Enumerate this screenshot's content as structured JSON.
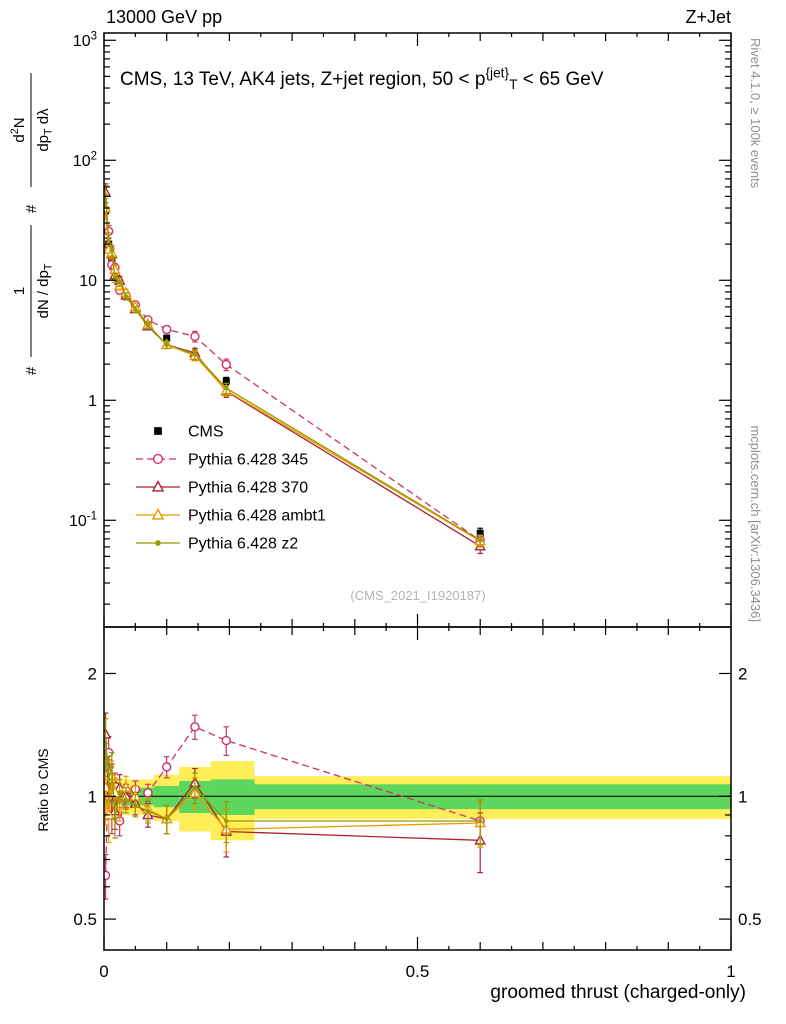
{
  "header": {
    "left": "13000 GeV pp",
    "right": "Z+Jet"
  },
  "title_parts": [
    {
      "t": "CMS, 13 TeV, AK4 jets, Z+jet region, 50 < p"
    },
    {
      "t": "{jet}",
      "style": "sup"
    },
    {
      "t": "T",
      "style": "sub"
    },
    {
      "t": " < 65 GeV"
    }
  ],
  "main_panel": {
    "watermark": "(CMS_2021_I1920187)"
  },
  "ylabel_main": {
    "hash_low": "#",
    "frac1": {
      "num_parts": [
        {
          "t": "1"
        }
      ],
      "den_parts": [
        {
          "t": "dN / dp"
        },
        {
          "t": "T",
          "style": "sub"
        }
      ]
    },
    "hash_high": "#",
    "frac2": {
      "num_parts": [
        {
          "t": "d"
        },
        {
          "t": "2",
          "style": "sup"
        },
        {
          "t": "N"
        }
      ],
      "den_parts": [
        {
          "t": "dp"
        },
        {
          "t": "T",
          "style": "sub"
        },
        {
          "t": " dλ"
        }
      ]
    }
  },
  "ratio_panel": {
    "ylabel": "Ratio to CMS"
  },
  "xlabel": "groomed thrust (charged-only)",
  "side_notes": {
    "top_right": "Rivet 4.1.0, ≥ 100k events",
    "bottom_right": "mcplots.cern.ch [arXiv:1306.3436]"
  },
  "legend": {
    "items": [
      {
        "label": "CMS",
        "color": "#000000",
        "marker": "square-filled",
        "line": "none"
      },
      {
        "label": "Pythia 6.428 345",
        "color": "#cc3366",
        "marker": "circle-open",
        "line": "dashed"
      },
      {
        "label": "Pythia 6.428 370",
        "color": "#aa2233",
        "marker": "triangle-open",
        "line": "solid"
      },
      {
        "label": "Pythia 6.428 ambt1",
        "color": "#ee9900",
        "marker": "triangle-open",
        "line": "solid"
      },
      {
        "label": "Pythia 6.428 z2",
        "color": "#999900",
        "marker": "dot",
        "line": "solid"
      }
    ]
  },
  "chart_data": {
    "type": "line",
    "title": "CMS, 13 TeV, AK4 jets, Z+jet region, 50 < pT^{jet} < 65 GeV",
    "xlabel": "groomed thrust (charged-only)",
    "ylabel": "(1 / dN/dpT) d2N / dpT dλ",
    "ratio_ylabel": "Ratio to CMS",
    "x": [
      0.0025,
      0.0075,
      0.0125,
      0.0175,
      0.025,
      0.035,
      0.05,
      0.07,
      0.1,
      0.145,
      0.195,
      0.6
    ],
    "bin_edges": [
      0,
      0.005,
      0.01,
      0.015,
      0.02,
      0.03,
      0.04,
      0.06,
      0.08,
      0.12,
      0.17,
      0.24,
      1.0
    ],
    "cms": {
      "name": "CMS",
      "y": [
        38,
        20,
        15,
        12,
        9.5,
        7.5,
        6.0,
        4.6,
        3.3,
        2.3,
        1.45,
        0.078
      ],
      "rel_err": [
        0.06,
        0.05,
        0.05,
        0.04,
        0.04,
        0.04,
        0.04,
        0.04,
        0.05,
        0.06,
        0.07,
        0.1
      ]
    },
    "series": [
      {
        "name": "Pythia 6.428 345",
        "color": "#cc3366",
        "marker": "circle-open",
        "line": "dashed",
        "ratio": [
          0.64,
          1.28,
          0.9,
          1.06,
          0.87,
          1.0,
          1.04,
          1.02,
          1.18,
          1.48,
          1.37,
          0.87
        ],
        "ratio_err": [
          0.08,
          0.12,
          0.09,
          0.08,
          0.07,
          0.06,
          0.05,
          0.05,
          0.07,
          0.1,
          0.11,
          0.1
        ]
      },
      {
        "name": "Pythia 6.428 370",
        "color": "#aa2233",
        "marker": "triangle-open",
        "line": "solid",
        "ratio": [
          1.42,
          1.0,
          1.1,
          0.92,
          1.05,
          1.0,
          0.96,
          0.9,
          0.88,
          1.08,
          0.82,
          0.78
        ],
        "ratio_err": [
          0.18,
          0.12,
          0.1,
          0.09,
          0.08,
          0.07,
          0.06,
          0.06,
          0.07,
          0.09,
          0.11,
          0.13
        ]
      },
      {
        "name": "Pythia 6.428 ambt1",
        "color": "#ee9900",
        "marker": "triangle-open",
        "line": "solid",
        "ratio": [
          1.05,
          0.9,
          1.12,
          1.02,
          0.95,
          1.05,
          1.0,
          0.93,
          0.88,
          1.02,
          0.83,
          0.86
        ],
        "ratio_err": [
          0.2,
          0.13,
          0.1,
          0.09,
          0.08,
          0.07,
          0.06,
          0.06,
          0.07,
          0.09,
          0.1,
          0.11
        ]
      },
      {
        "name": "Pythia 6.428 z2",
        "color": "#999900",
        "marker": "dot",
        "line": "solid",
        "ratio": [
          1.35,
          1.1,
          1.18,
          0.88,
          1.02,
          0.98,
          0.95,
          0.92,
          0.88,
          1.05,
          0.87,
          0.87
        ],
        "ratio_err": [
          0.2,
          0.13,
          0.1,
          0.09,
          0.08,
          0.07,
          0.06,
          0.06,
          0.07,
          0.09,
          0.1,
          0.11
        ]
      }
    ],
    "ratio_bands": {
      "yellow_half_width": [
        0.1,
        0.1,
        0.1,
        0.1,
        0.1,
        0.1,
        0.1,
        0.1,
        0.13,
        0.18,
        0.22,
        0.12
      ],
      "green_half_width": [
        0.05,
        0.05,
        0.05,
        0.05,
        0.05,
        0.05,
        0.05,
        0.05,
        0.06,
        0.09,
        0.1,
        0.07
      ],
      "yellow_color": "#ffee58",
      "green_color": "#5cd65c"
    },
    "axes": {
      "x_range": [
        0,
        1
      ],
      "x_ticks": [
        {
          "v": 0,
          "label": "0"
        },
        {
          "v": 0.5,
          "label": "0.5"
        },
        {
          "v": 1,
          "label": "1"
        }
      ],
      "x_minor_step": 0.05,
      "x_medium_step": 0.1,
      "y_main_range": [
        0.0129,
        1150
      ],
      "y_main_log": true,
      "y_main_ticks": [
        {
          "v": 1000,
          "parts": [
            {
              "t": "10"
            },
            {
              "t": "3",
              "style": "sup"
            }
          ]
        },
        {
          "v": 100,
          "parts": [
            {
              "t": "10"
            },
            {
              "t": "2",
              "style": "sup"
            }
          ]
        },
        {
          "v": 10,
          "parts": [
            {
              "t": "10"
            }
          ]
        },
        {
          "v": 1,
          "parts": [
            {
              "t": "1"
            }
          ]
        },
        {
          "v": 0.1,
          "parts": [
            {
              "t": "10"
            },
            {
              "t": "-1",
              "style": "sup"
            }
          ]
        }
      ],
      "y_ratio_range": [
        0.42,
        2.6
      ],
      "y_ratio_log": true,
      "y_ratio_ticks": [
        {
          "v": 0.5,
          "label": "0.5"
        },
        {
          "v": 1,
          "label": "1"
        },
        {
          "v": 2,
          "label": "2"
        }
      ],
      "y_ratio_minor": [
        0.6,
        0.7,
        0.8,
        0.9
      ]
    }
  }
}
